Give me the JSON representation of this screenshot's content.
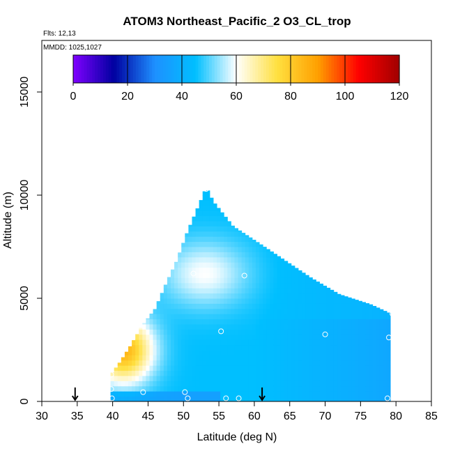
{
  "title": "ATOM3 Northeast_Pacific_2 O3_CL_trop",
  "flights_label": "Flts: 12,13",
  "mmdd_label": "MMDD: 1025,1027",
  "chart_data": {
    "type": "heatmap",
    "title": "ATOM3 Northeast_Pacific_2 O3_CL_trop",
    "xlabel": "Latitude (deg N)",
    "ylabel": "Altitude (m)",
    "xlim": [
      30,
      85
    ],
    "ylim": [
      0,
      17500
    ],
    "xticks": [
      "30",
      "35",
      "40",
      "45",
      "50",
      "55",
      "60",
      "65",
      "70",
      "75",
      "80",
      "85"
    ],
    "yticks": [
      "0",
      "5000",
      "10000",
      "15000"
    ],
    "grid": false,
    "colorbar": {
      "ticks": [
        "0",
        "20",
        "40",
        "60",
        "80",
        "100",
        "120"
      ],
      "range": [
        0,
        120
      ],
      "colors": [
        "#8000ff",
        "#0000a0",
        "#1e90ff",
        "#00bfff",
        "#ffffff",
        "#ffe040",
        "#ffa000",
        "#ff0000",
        "#a00000"
      ]
    },
    "field": {
      "domain_lat_min": 39.7,
      "domain_lat_max": 79.0,
      "top_profile": [
        {
          "lat": 39.7,
          "alt": 1300
        },
        {
          "lat": 40.8,
          "alt": 1800
        },
        {
          "lat": 42.5,
          "alt": 2700
        },
        {
          "lat": 44.0,
          "alt": 3600
        },
        {
          "lat": 46.0,
          "alt": 4500
        },
        {
          "lat": 47.5,
          "alt": 5700
        },
        {
          "lat": 49.0,
          "alt": 6800
        },
        {
          "lat": 50.5,
          "alt": 8200
        },
        {
          "lat": 52.5,
          "alt": 9800
        },
        {
          "lat": 53.2,
          "alt": 10400
        },
        {
          "lat": 54.2,
          "alt": 9700
        },
        {
          "lat": 57.0,
          "alt": 8500
        },
        {
          "lat": 61.0,
          "alt": 7600
        },
        {
          "lat": 64.5,
          "alt": 6800
        },
        {
          "lat": 68.0,
          "alt": 6000
        },
        {
          "lat": 72.0,
          "alt": 5200
        },
        {
          "lat": 76.5,
          "alt": 4700
        },
        {
          "lat": 79.0,
          "alt": 4300
        }
      ]
    },
    "flight_points": [
      {
        "lat": 53.2,
        "alt": 10300
      },
      {
        "lat": 51.4,
        "alt": 6200
      },
      {
        "lat": 58.6,
        "alt": 6100
      },
      {
        "lat": 55.3,
        "alt": 3400
      },
      {
        "lat": 70.0,
        "alt": 3250
      },
      {
        "lat": 79.0,
        "alt": 3100
      },
      {
        "lat": 79.5,
        "alt": 4250
      },
      {
        "lat": 39.8,
        "alt": 1300
      },
      {
        "lat": 39.8,
        "alt": 600
      },
      {
        "lat": 44.3,
        "alt": 450
      },
      {
        "lat": 50.2,
        "alt": 450
      },
      {
        "lat": 39.9,
        "alt": 150
      },
      {
        "lat": 50.6,
        "alt": 150
      },
      {
        "lat": 56.0,
        "alt": 150
      },
      {
        "lat": 57.8,
        "alt": 150
      },
      {
        "lat": 78.8,
        "alt": 150
      }
    ],
    "arrows_lat": [
      34.7,
      61.1
    ]
  }
}
